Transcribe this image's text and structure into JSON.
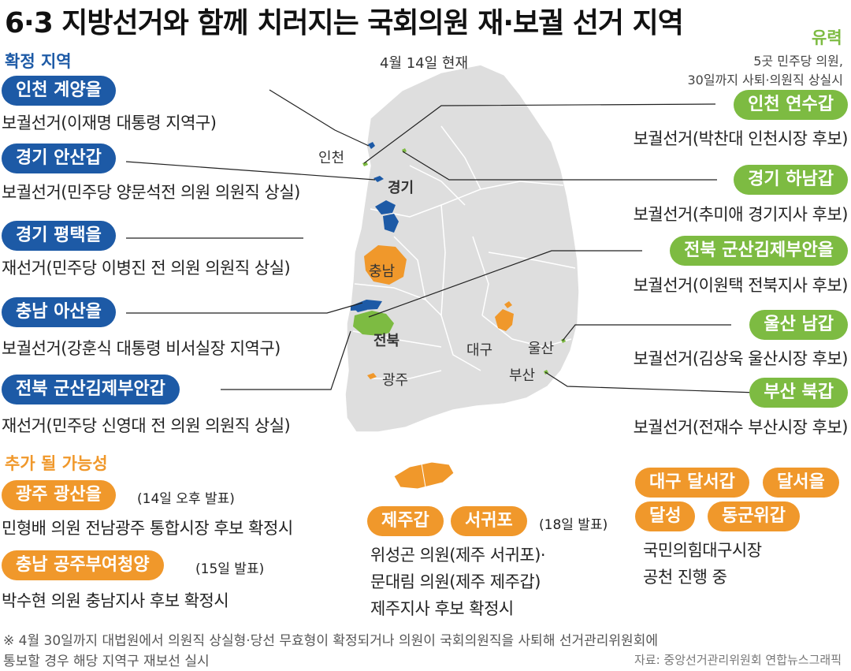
{
  "title": "6·3 지방선거와 함께 치러지는 국회의원 재·보궐 선거 지역",
  "date_note": "4월 14일 현재",
  "confirmed": {
    "heading": "확정 지역",
    "items": [
      {
        "name": "인천 계양을",
        "desc": "보궐선거(이재명 대통령 지역구)"
      },
      {
        "name": "경기 안산갑",
        "desc": "보궐선거(민주당 양문석전 의원 의원직 상실)"
      },
      {
        "name": "경기 평택을",
        "desc": "재선거(민주당 이병진 전 의원 의원직 상실)"
      },
      {
        "name": "충남 아산을",
        "desc": "보궐선거(강훈식 대통령 비서실장 지역구)"
      },
      {
        "name": "전북 군산김제부안갑",
        "desc": "재선거(민주당 신영대 전 의원 의원직 상실)"
      }
    ]
  },
  "likely": {
    "heading": "유력",
    "note_line1": "5곳 민주당 의원,",
    "note_line2": "30일까지 사퇴·의원직 상실시",
    "items": [
      {
        "name": "인천 연수갑",
        "desc": "보궐선거(박찬대 인천시장 후보)"
      },
      {
        "name": "경기 하남갑",
        "desc": "보궐선거(추미애 경기지사 후보)"
      },
      {
        "name": "전북 군산김제부안을",
        "desc": "보궐선거(이원택 전북지사 후보)"
      },
      {
        "name": "울산 남갑",
        "desc": "보궐선거(김상욱 울산시장 후보)"
      },
      {
        "name": "부산 북갑",
        "desc": "보궐선거(전재수 부산시장 후보)"
      }
    ]
  },
  "possible": {
    "heading": "추가 될 가능성",
    "gwangju": {
      "name": "광주 광산을",
      "date": "(14일 오후 발표)",
      "desc": "민형배 의원 전남광주 통합시장 후보 확정시"
    },
    "chungnam": {
      "name": "충남 공주부여청양",
      "date": "(15일 발표)",
      "desc": "박수현 의원 충남지사 후보 확정시"
    },
    "jeju": {
      "name1": "제주갑",
      "name2": "서귀포",
      "date": "(18일 발표)",
      "desc1": "위성곤 의원(제주 서귀포)·",
      "desc2": "문대림 의원(제주 제주갑)",
      "desc3": "제주지사 후보 확정시"
    },
    "daegu": {
      "name1": "대구 달서갑",
      "name2": "달서을",
      "name3": "달성",
      "name4": "동군위갑",
      "desc1": "국민의힘대구시장",
      "desc2": "공천 진행 중"
    }
  },
  "map_labels": {
    "incheon": "인천",
    "gyeonggi": "경기",
    "chungnam": "충남",
    "jeonbuk": "전북",
    "gwangju": "광주",
    "daegu": "대구",
    "ulsan": "울산",
    "busan": "부산"
  },
  "footnote_line1": "※ 4월 30일까지 대법원에서 의원직 상실형·당선 무효형이 확정되거나 의원이 국회의원직을 사퇴해 선거관리위원회에",
  "footnote_line2": "통보할 경우 해당 지역구 재보선 실시",
  "source": "자료: 중앙선거관리위원회  연합뉴스그래픽",
  "colors": {
    "confirmed": "#1d5aa6",
    "likely": "#7dbb42",
    "possible": "#f0982b",
    "map_base": "#dcdcdc"
  }
}
